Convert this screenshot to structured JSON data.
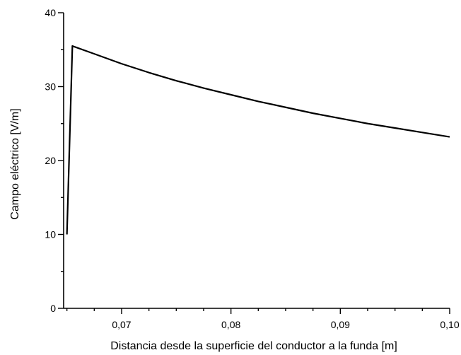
{
  "chart_data": {
    "type": "line",
    "xlabel": "Distancia desde la superficie del conductor a la funda [m]",
    "ylabel": "Campo eléctrico [V/m]",
    "xlim": [
      0.0647,
      0.1
    ],
    "ylim": [
      0,
      40
    ],
    "x_ticks": [
      {
        "value": 0.07,
        "label": "0,07"
      },
      {
        "value": 0.08,
        "label": "0,08"
      },
      {
        "value": 0.09,
        "label": "0,09"
      },
      {
        "value": 0.1,
        "label": "0,10"
      }
    ],
    "y_ticks": [
      {
        "value": 0,
        "label": "0"
      },
      {
        "value": 10,
        "label": "10"
      },
      {
        "value": 20,
        "label": "20"
      },
      {
        "value": 30,
        "label": "30"
      },
      {
        "value": 40,
        "label": "40"
      }
    ],
    "x_minor_step": 0.0025,
    "y_minor_step": 5,
    "grid": false,
    "series": [
      {
        "x": [
          0.065,
          0.0655,
          0.067,
          0.07,
          0.0725,
          0.075,
          0.0775,
          0.08,
          0.0825,
          0.085,
          0.0875,
          0.09,
          0.0925,
          0.095,
          0.0975,
          0.1
        ],
        "y": [
          10.0,
          35.5,
          34.7,
          33.1,
          31.9,
          30.8,
          29.8,
          28.9,
          28.0,
          27.2,
          26.4,
          25.7,
          25.0,
          24.4,
          23.8,
          23.2
        ]
      }
    ]
  }
}
